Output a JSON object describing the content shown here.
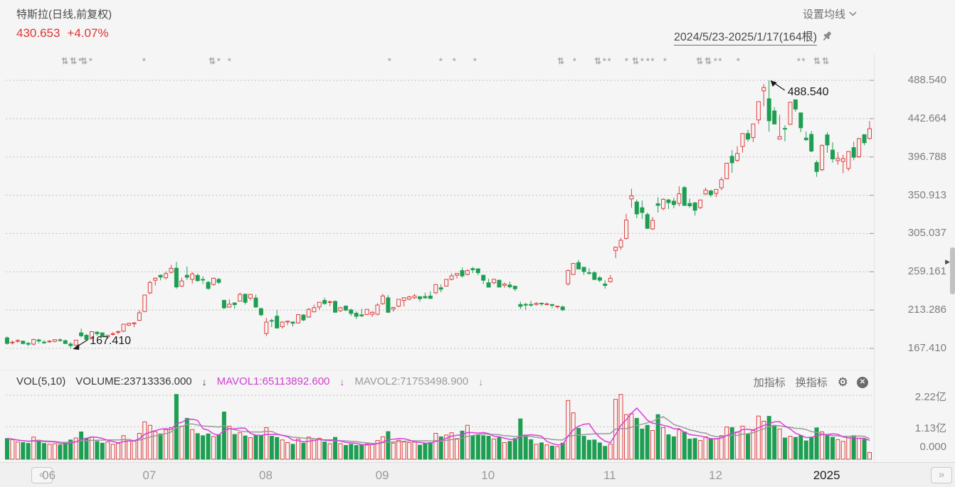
{
  "header": {
    "title": "特斯拉(日线,前复权)",
    "price": "430.653",
    "change": "+4.07%",
    "price_color": "#e23333",
    "ma_settings": "设置均线",
    "date_range": "2024/5/23-2025/1/17(164根)"
  },
  "vol_header": {
    "indicator": "VOL(5,10)",
    "volume": "VOLUME:23713336.000",
    "mavol1": "MAVOL1:65113892.600",
    "mavol2": "MAVOL2:71753498.900",
    "down_arrow": "↓",
    "add_indicator": "加指标",
    "switch_indicator": "换指标",
    "volume_color": "#3a3a3a",
    "mavol1_color": "#cf3fcf",
    "mavol2_color": "#9a9a9a"
  },
  "x_axis": {
    "prev_button": "«",
    "next_button": "»",
    "months": [
      {
        "label": "06",
        "bar": 6
      },
      {
        "label": "07",
        "bar": 25
      },
      {
        "label": "08",
        "bar": 47
      },
      {
        "label": "09",
        "bar": 69
      },
      {
        "label": "10",
        "bar": 89
      },
      {
        "label": "11",
        "bar": 112
      },
      {
        "label": "12",
        "bar": 132
      },
      {
        "label": "2025",
        "bar": 153,
        "year": true
      }
    ]
  },
  "colors": {
    "up": "#e03e3e",
    "down": "#1e9e53",
    "grid": "#bfbfbf",
    "bg": "#f5f5f5",
    "annotation": "#1a1a1a",
    "mavol1": "#dd3cdd",
    "mavol2": "#9a9a9a"
  },
  "event_markers": [
    {
      "x": 86,
      "icons": [
        "updown-arrows",
        "updown-arrows",
        "asterisk"
      ]
    },
    {
      "x": 113,
      "icons": [
        "updown-arrows",
        "asterisk"
      ]
    },
    {
      "x": 200,
      "icons": [
        "asterisk"
      ]
    },
    {
      "x": 293,
      "icons": [
        "updown-arrows",
        "asterisk"
      ]
    },
    {
      "x": 320,
      "icons": [
        "asterisk"
      ]
    },
    {
      "x": 545,
      "icons": [
        "asterisk"
      ]
    },
    {
      "x": 617,
      "icons": [
        "asterisk"
      ]
    },
    {
      "x": 636,
      "icons": [
        "asterisk"
      ]
    },
    {
      "x": 665,
      "icons": [
        "asterisk"
      ]
    },
    {
      "x": 783,
      "icons": [
        "updown-arrows"
      ]
    },
    {
      "x": 805,
      "icons": [
        "asterisk"
      ]
    },
    {
      "x": 835,
      "icons": [
        "updown-arrows",
        "asterisk",
        "asterisk"
      ]
    },
    {
      "x": 878,
      "icons": [
        "asterisk"
      ]
    },
    {
      "x": 888,
      "icons": [
        "updown-arrows",
        "asterisk"
      ]
    },
    {
      "x": 908,
      "icons": [
        "asterisk",
        "asterisk"
      ]
    },
    {
      "x": 932,
      "icons": [
        "asterisk"
      ]
    },
    {
      "x": 978,
      "icons": [
        "updown-arrows",
        "updown-arrows"
      ]
    },
    {
      "x": 1003,
      "icons": [
        "asterisk",
        "asterisk"
      ]
    },
    {
      "x": 1035,
      "icons": [
        "asterisk"
      ]
    },
    {
      "x": 1120,
      "icons": [
        "asterisk",
        "asterisk"
      ]
    },
    {
      "x": 1143,
      "icons": [
        "updown-arrows",
        "updown-arrows"
      ]
    }
  ],
  "chart_data": {
    "type": "candlestick+volume",
    "title": "特斯拉(日线,前复权)",
    "date_range": "2024/5/23-2025/1/17",
    "bar_count": 164,
    "price_ticks": [
      "488.540",
      "442.664",
      "396.788",
      "350.913",
      "305.037",
      "259.161",
      "213.286",
      "167.410"
    ],
    "ylim": [
      167.41,
      488.54
    ],
    "volume_ticks": [
      "2.22亿",
      "1.13亿",
      "0.000"
    ],
    "volume_ylim_yi": [
      0,
      2.22
    ],
    "volume_unit": "亿",
    "annotations": {
      "high_label": "488.540",
      "high_bar": 144,
      "low_label": "167.410",
      "low_bar": 12
    },
    "mavol_periods": [
      5,
      10
    ],
    "ohlc": [
      [
        180.0,
        181.6,
        171.9,
        173.3
      ],
      [
        174.2,
        176.8,
        172.1,
        174.8
      ],
      [
        176.4,
        178.3,
        173.9,
        176.8
      ],
      [
        176.0,
        176.9,
        172.3,
        173.2
      ],
      [
        173.5,
        174.9,
        170.1,
        172.4
      ],
      [
        172.6,
        179.0,
        170.8,
        178.1
      ],
      [
        177.5,
        178.8,
        173.5,
        176.3
      ],
      [
        174.9,
        177.2,
        172.5,
        174.8
      ],
      [
        175.3,
        177.5,
        174.0,
        176.1
      ],
      [
        175.8,
        178.3,
        174.6,
        177.9
      ],
      [
        177.6,
        179.3,
        175.4,
        177.5
      ],
      [
        176.5,
        178.1,
        172.6,
        173.2
      ],
      [
        172.6,
        174.9,
        167.41,
        170.7
      ],
      [
        171.2,
        177.3,
        170.2,
        177.3
      ],
      [
        186.0,
        191.1,
        180.7,
        182.5
      ],
      [
        183.1,
        184.6,
        177.5,
        178.0
      ],
      [
        179.0,
        187.7,
        178.2,
        187.4
      ],
      [
        186.9,
        187.7,
        182.4,
        184.9
      ],
      [
        186.0,
        186.5,
        180.8,
        181.6
      ],
      [
        181.2,
        183.7,
        178.7,
        183.0
      ],
      [
        184.0,
        187.0,
        182.7,
        185.0
      ],
      [
        186.8,
        188.8,
        184.0,
        187.4
      ],
      [
        188.0,
        196.8,
        187.1,
        196.4
      ],
      [
        195.2,
        198.2,
        194.2,
        197.4
      ],
      [
        197.0,
        198.9,
        192.8,
        197.9
      ],
      [
        201.0,
        213.2,
        200.1,
        209.9
      ],
      [
        211.5,
        231.7,
        211.0,
        231.3
      ],
      [
        234.0,
        248.3,
        232.0,
        246.4
      ],
      [
        249.0,
        252.4,
        242.7,
        251.5
      ],
      [
        255.0,
        256.1,
        248.9,
        252.9
      ],
      [
        252.0,
        259.5,
        250.0,
        257.0
      ],
      [
        258.5,
        267.5,
        257.2,
        263.3
      ],
      [
        263.5,
        271.0,
        239.0,
        241.0
      ],
      [
        242.0,
        252.0,
        241.2,
        248.2
      ],
      [
        255.0,
        265.5,
        249.3,
        252.6
      ],
      [
        250.0,
        258.9,
        245.0,
        256.6
      ],
      [
        254.8,
        257.1,
        247.3,
        248.5
      ],
      [
        250.0,
        253.9,
        244.6,
        249.2
      ],
      [
        246.5,
        248.0,
        237.8,
        239.2
      ],
      [
        244.0,
        252.2,
        242.6,
        251.5
      ],
      [
        250.0,
        251.8,
        244.5,
        246.4
      ],
      [
        225.0,
        225.5,
        214.7,
        216.0
      ],
      [
        216.8,
        226.0,
        216.2,
        220.3
      ],
      [
        221.9,
        222.3,
        214.9,
        219.8
      ],
      [
        224.0,
        234.3,
        223.6,
        232.1
      ],
      [
        232.3,
        232.4,
        220.0,
        222.6
      ],
      [
        227.7,
        232.7,
        225.2,
        232.1
      ],
      [
        227.7,
        231.8,
        216.2,
        216.9
      ],
      [
        214.9,
        216.1,
        205.8,
        207.7
      ],
      [
        185.2,
        203.9,
        182.0,
        198.9
      ],
      [
        200.8,
        202.9,
        192.9,
        200.6
      ],
      [
        206.0,
        213.6,
        191.6,
        191.8
      ],
      [
        193.4,
        200.0,
        191.1,
        198.9
      ],
      [
        199.0,
        200.5,
        195.2,
        200.0
      ],
      [
        199.0,
        199.3,
        193.6,
        197.5
      ],
      [
        197.9,
        208.4,
        197.0,
        207.8
      ],
      [
        207.4,
        208.4,
        200.0,
        201.4
      ],
      [
        205.0,
        215.9,
        204.0,
        214.1
      ],
      [
        211.2,
        219.8,
        210.8,
        216.1
      ],
      [
        217.0,
        223.0,
        213.7,
        222.7
      ],
      [
        224.9,
        228.2,
        219.6,
        221.1
      ],
      [
        222.6,
        224.7,
        218.0,
        223.3
      ],
      [
        223.7,
        224.8,
        210.6,
        210.7
      ],
      [
        212.4,
        217.3,
        211.0,
        216.1
      ],
      [
        218.0,
        219.0,
        212.0,
        213.2
      ],
      [
        213.5,
        214.9,
        206.3,
        209.2
      ],
      [
        209.5,
        211.9,
        202.6,
        205.8
      ],
      [
        207.5,
        214.9,
        205.0,
        206.3
      ],
      [
        208.0,
        214.6,
        207.3,
        214.1
      ],
      [
        208.2,
        211.8,
        205.0,
        210.6
      ],
      [
        208.3,
        221.6,
        207.0,
        219.4
      ],
      [
        221.0,
        232.7,
        219.5,
        230.2
      ],
      [
        228.0,
        231.1,
        209.6,
        210.7
      ],
      [
        214.5,
        217.3,
        211.4,
        216.3
      ],
      [
        218.0,
        226.4,
        216.8,
        226.2
      ],
      [
        224.9,
        228.5,
        217.5,
        228.1
      ],
      [
        226.5,
        230.4,
        225.0,
        229.1
      ],
      [
        228.1,
        232.6,
        226.6,
        230.3
      ],
      [
        229.3,
        229.9,
        223.5,
        226.8
      ],
      [
        229.5,
        234.2,
        226.9,
        227.9
      ],
      [
        230.1,
        235.7,
        226.7,
        227.2
      ],
      [
        234.0,
        244.2,
        232.5,
        243.9
      ],
      [
        240.0,
        244.0,
        234.6,
        238.3
      ],
      [
        242.0,
        250.5,
        241.8,
        250.0
      ],
      [
        250.1,
        257.2,
        248.8,
        254.3
      ],
      [
        255.0,
        257.5,
        251.3,
        257.0
      ],
      [
        260.6,
        264.3,
        252.2,
        254.2
      ],
      [
        256.0,
        262.2,
        254.8,
        260.5
      ],
      [
        263.0,
        264.9,
        257.6,
        261.6
      ],
      [
        262.7,
        263.0,
        255.0,
        258.0
      ],
      [
        255.0,
        255.7,
        244.6,
        249.0
      ],
      [
        246.0,
        250.9,
        240.6,
        240.7
      ],
      [
        246.0,
        250.7,
        244.2,
        250.1
      ],
      [
        249.0,
        249.8,
        240.7,
        240.8
      ],
      [
        243.0,
        246.2,
        240.0,
        244.5
      ],
      [
        243.4,
        247.4,
        239.3,
        241.1
      ],
      [
        241.8,
        242.8,
        236.0,
        238.8
      ],
      [
        220.0,
        223.3,
        214.4,
        217.8
      ],
      [
        220.1,
        221.9,
        213.7,
        219.2
      ],
      [
        220.0,
        224.3,
        217.1,
        219.6
      ],
      [
        219.9,
        222.8,
        218.9,
        221.3
      ],
      [
        221.5,
        222.3,
        218.2,
        220.9
      ],
      [
        220.0,
        222.3,
        219.0,
        220.7
      ],
      [
        220.0,
        220.5,
        215.7,
        218.9
      ],
      [
        217.3,
        218.2,
        215.3,
        218.0
      ],
      [
        217.1,
        218.7,
        212.1,
        213.7
      ],
      [
        244.7,
        262.1,
        242.6,
        260.5
      ],
      [
        256.0,
        269.5,
        255.3,
        269.2
      ],
      [
        270.1,
        273.5,
        262.2,
        262.5
      ],
      [
        264.5,
        265.0,
        255.5,
        259.5
      ],
      [
        258.0,
        263.4,
        255.8,
        257.6
      ],
      [
        258.0,
        259.8,
        249.3,
        249.9
      ],
      [
        252.0,
        254.0,
        246.6,
        249.0
      ],
      [
        244.6,
        248.9,
        238.9,
        242.8
      ],
      [
        247.3,
        255.3,
        246.2,
        251.4
      ],
      [
        284.7,
        289.6,
        275.6,
        288.5
      ],
      [
        288.9,
        299.8,
        285.5,
        296.9
      ],
      [
        299.1,
        328.7,
        297.7,
        321.2
      ],
      [
        346.3,
        358.6,
        336.0,
        350.0
      ],
      [
        342.8,
        345.8,
        323.3,
        328.5
      ],
      [
        335.9,
        344.6,
        322.5,
        330.2
      ],
      [
        327.7,
        330.0,
        310.4,
        311.2
      ],
      [
        310.6,
        324.7,
        309.2,
        320.7
      ],
      [
        340.7,
        348.5,
        330.0,
        338.7
      ],
      [
        335.0,
        347.4,
        332.8,
        346.0
      ],
      [
        345.3,
        346.6,
        334.3,
        342.0
      ],
      [
        343.8,
        348.0,
        335.3,
        339.6
      ],
      [
        341.1,
        361.5,
        337.7,
        352.6
      ],
      [
        360.1,
        361.9,
        338.2,
        338.6
      ],
      [
        341.0,
        347.0,
        335.7,
        338.2
      ],
      [
        341.8,
        342.6,
        326.6,
        332.9
      ],
      [
        336.1,
        345.5,
        334.3,
        345.2
      ],
      [
        352.5,
        360.0,
        351.0,
        357.1
      ],
      [
        356.0,
        357.6,
        348.7,
        351.4
      ],
      [
        353.1,
        358.0,
        348.6,
        357.9
      ],
      [
        359.9,
        372.4,
        356.9,
        369.5
      ],
      [
        370.6,
        389.5,
        370.1,
        389.2
      ],
      [
        397.6,
        404.8,
        378.0,
        389.8
      ],
      [
        392.7,
        409.7,
        390.6,
        401.0
      ],
      [
        409.3,
        424.9,
        402.0,
        424.8
      ],
      [
        424.8,
        429.3,
        415.0,
        418.1
      ],
      [
        420.0,
        436.3,
        414.7,
        436.2
      ],
      [
        441.1,
        463.2,
        436.2,
        463.0
      ],
      [
        475.9,
        484.0,
        457.5,
        479.9
      ],
      [
        466.5,
        488.54,
        427.0,
        440.1
      ],
      [
        451.9,
        456.4,
        436.0,
        436.2
      ],
      [
        418.1,
        447.1,
        417.6,
        421.1
      ],
      [
        431.0,
        434.5,
        415.4,
        430.6
      ],
      [
        435.9,
        462.8,
        435.1,
        462.3
      ],
      [
        465.2,
        465.3,
        451.0,
        454.1
      ],
      [
        449.5,
        450.0,
        426.5,
        431.7
      ],
      [
        419.4,
        427.0,
        415.8,
        417.4
      ],
      [
        423.8,
        427.9,
        402.5,
        403.8
      ],
      [
        390.1,
        392.7,
        373.0,
        379.3
      ],
      [
        381.5,
        411.9,
        379.5,
        410.4
      ],
      [
        423.2,
        426.4,
        401.7,
        411.1
      ],
      [
        405.0,
        414.3,
        390.0,
        394.4
      ],
      [
        392.3,
        402.5,
        387.4,
        394.9
      ],
      [
        391.4,
        399.3,
        377.3,
        394.7
      ],
      [
        383.0,
        403.7,
        380.1,
        403.3
      ],
      [
        408.0,
        415.1,
        392.8,
        396.4
      ],
      [
        397.0,
        419.8,
        395.5,
        418.7
      ],
      [
        423.5,
        424.0,
        410.8,
        413.8
      ],
      [
        419.0,
        439.7,
        417.4,
        430.653
      ]
    ],
    "volumes_yi": [
      0.72,
      0.68,
      0.6,
      0.58,
      0.55,
      0.77,
      0.66,
      0.55,
      0.52,
      0.54,
      0.5,
      0.58,
      0.67,
      0.74,
      0.95,
      0.72,
      0.78,
      0.62,
      0.56,
      0.6,
      0.52,
      0.55,
      0.82,
      0.68,
      0.63,
      0.9,
      1.3,
      1.18,
      0.96,
      0.88,
      1.02,
      1.1,
      2.25,
      1.15,
      1.42,
      1.03,
      0.89,
      0.82,
      0.88,
      0.79,
      0.84,
      1.64,
      1.15,
      0.86,
      0.92,
      0.81,
      0.75,
      0.84,
      0.82,
      1.1,
      0.8,
      0.76,
      0.67,
      0.58,
      0.52,
      0.7,
      0.56,
      0.77,
      0.71,
      0.73,
      0.6,
      0.54,
      0.76,
      0.54,
      0.48,
      0.52,
      0.48,
      0.51,
      0.53,
      0.52,
      0.65,
      0.78,
      0.96,
      0.56,
      0.66,
      0.6,
      0.58,
      0.6,
      0.49,
      0.54,
      0.58,
      0.9,
      0.78,
      0.84,
      0.92,
      0.72,
      0.98,
      1.18,
      0.82,
      0.84,
      0.82,
      0.8,
      0.7,
      0.75,
      0.58,
      0.62,
      0.72,
      1.4,
      0.84,
      0.68,
      0.52,
      0.57,
      0.5,
      0.46,
      0.44,
      0.56,
      2.04,
      1.61,
      1.07,
      0.8,
      0.66,
      0.67,
      0.57,
      0.45,
      0.53,
      2.08,
      2.25,
      1.55,
      1.58,
      1.42,
      1.05,
      1.18,
      1.0,
      1.55,
      1.1,
      0.85,
      0.78,
      1.02,
      0.95,
      0.7,
      0.72,
      0.65,
      0.78,
      0.72,
      0.7,
      0.82,
      1.12,
      1.1,
      0.95,
      1.15,
      0.88,
      1.0,
      1.5,
      1.32,
      1.49,
      1.18,
      1.05,
      0.74,
      0.8,
      0.76,
      0.82,
      0.64,
      0.77,
      1.09,
      0.95,
      0.85,
      0.76,
      0.68,
      0.62,
      0.8,
      0.82,
      0.72,
      0.69,
      0.237
    ]
  }
}
